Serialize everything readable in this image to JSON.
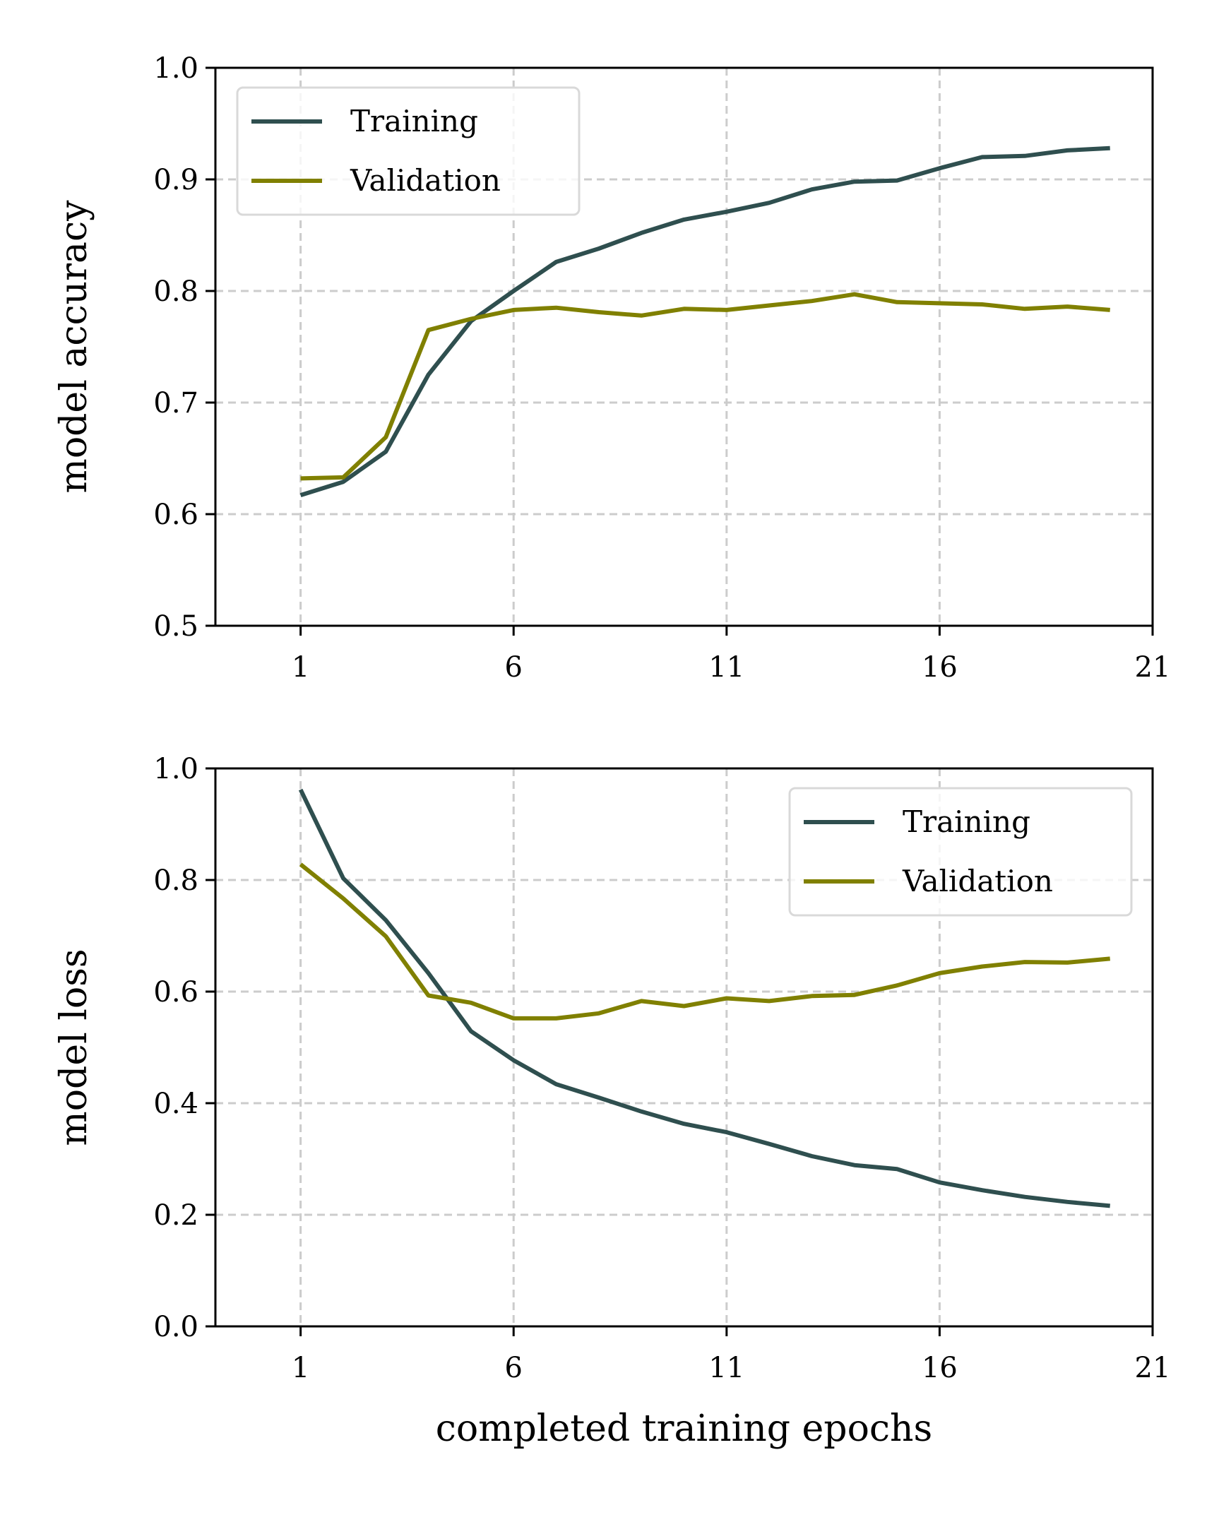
{
  "chart_data": [
    {
      "type": "line",
      "x": [
        1,
        2,
        3,
        4,
        5,
        6,
        7,
        8,
        9,
        10,
        11,
        12,
        13,
        14,
        15,
        16,
        17,
        18,
        19,
        20
      ],
      "series": [
        {
          "name": "Training",
          "color": "#2f4f4f",
          "values": [
            0.617,
            0.629,
            0.656,
            0.725,
            0.773,
            0.8,
            0.826,
            0.838,
            0.852,
            0.864,
            0.871,
            0.879,
            0.891,
            0.898,
            0.899,
            0.91,
            0.92,
            0.921,
            0.926,
            0.928
          ]
        },
        {
          "name": "Validation",
          "color": "#808000",
          "values": [
            0.632,
            0.633,
            0.669,
            0.765,
            0.775,
            0.783,
            0.785,
            0.781,
            0.778,
            0.784,
            0.783,
            0.787,
            0.791,
            0.797,
            0.79,
            0.789,
            0.788,
            0.784,
            0.786,
            0.783
          ]
        }
      ],
      "xlabel": "",
      "ylabel": "model accuracy",
      "xlim": [
        -1,
        21
      ],
      "ylim": [
        0.5,
        1.0
      ],
      "xticks": [
        1,
        6,
        11,
        16,
        21
      ],
      "yticks": [
        0.5,
        0.6,
        0.7,
        0.8,
        0.9,
        1.0
      ],
      "ytick_labels": [
        "0.5",
        "0.6",
        "0.7",
        "0.8",
        "0.9",
        "1.0"
      ],
      "grid": true,
      "legend_position": "upper left"
    },
    {
      "type": "line",
      "x": [
        1,
        2,
        3,
        4,
        5,
        6,
        7,
        8,
        9,
        10,
        11,
        12,
        13,
        14,
        15,
        16,
        17,
        18,
        19,
        20
      ],
      "series": [
        {
          "name": "Training",
          "color": "#2f4f4f",
          "values": [
            0.962,
            0.803,
            0.728,
            0.633,
            0.529,
            0.477,
            0.434,
            0.41,
            0.385,
            0.363,
            0.348,
            0.327,
            0.305,
            0.289,
            0.282,
            0.258,
            0.244,
            0.232,
            0.223,
            0.216
          ]
        },
        {
          "name": "Validation",
          "color": "#808000",
          "values": [
            0.828,
            0.767,
            0.699,
            0.593,
            0.58,
            0.552,
            0.552,
            0.561,
            0.583,
            0.574,
            0.588,
            0.583,
            0.592,
            0.594,
            0.611,
            0.633,
            0.645,
            0.653,
            0.652,
            0.659
          ]
        }
      ],
      "xlabel": "completed training epochs",
      "ylabel": "model loss",
      "xlim": [
        -1,
        21
      ],
      "ylim": [
        0.0,
        1.0
      ],
      "xticks": [
        1,
        6,
        11,
        16,
        21
      ],
      "yticks": [
        0.0,
        0.2,
        0.4,
        0.6,
        0.8,
        1.0
      ],
      "ytick_labels": [
        "0.0",
        "0.2",
        "0.4",
        "0.6",
        "0.8",
        "1.0"
      ],
      "grid": true,
      "legend_position": "upper right"
    }
  ]
}
